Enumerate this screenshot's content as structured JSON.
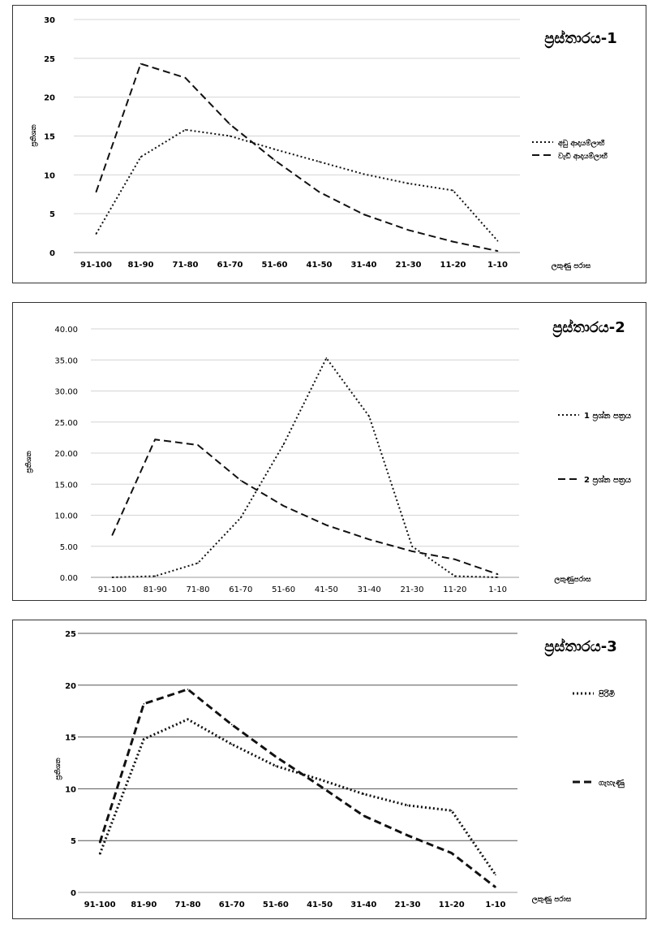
{
  "chart_data": [
    {
      "type": "line",
      "title": "ප්‍රස්තාරය-1",
      "ylabel": "ප්‍රතිශත",
      "xlabel": "ලකුණු පරාස",
      "categories": [
        "91-100",
        "81-90",
        "71-80",
        "61-70",
        "51-60",
        "41-50",
        "31-40",
        "21-30",
        "11-20",
        "1-10"
      ],
      "ylim": [
        0,
        30
      ],
      "yticks": [
        "0",
        "5",
        "10",
        "15",
        "20",
        "25",
        "30"
      ],
      "grid": true,
      "legend_position": "right",
      "series": [
        {
          "name": "අඩු ආදායම්ලාභී",
          "style": "dotted",
          "values": [
            2.4,
            12.3,
            15.8,
            15.0,
            13.3,
            11.7,
            10.1,
            8.9,
            8.0,
            1.5
          ]
        },
        {
          "name": "වැඩි ආදායම්ලාභී",
          "style": "dashed",
          "values": [
            7.8,
            24.3,
            22.5,
            16.5,
            11.9,
            7.8,
            4.9,
            2.9,
            1.4,
            0.2
          ]
        }
      ]
    },
    {
      "type": "line",
      "title": "ප්‍රස්තාරය-2",
      "ylabel": "ප්‍රතිශත",
      "xlabel": "ලකුණුපරාස",
      "categories": [
        "91-100",
        "81-90",
        "71-80",
        "61-70",
        "51-60",
        "41-50",
        "31-40",
        "21-30",
        "11-20",
        "1-10"
      ],
      "ylim": [
        0,
        40
      ],
      "yticks": [
        "0.00",
        "5.00",
        "10.00",
        "15.00",
        "20.00",
        "25.00",
        "30.00",
        "35.00",
        "40.00"
      ],
      "grid": true,
      "legend_position": "right",
      "series": [
        {
          "name": "1 ප්‍රශ්න පත්‍රය",
          "style": "dotted",
          "values": [
            0.0,
            0.2,
            2.3,
            9.6,
            21.4,
            35.3,
            25.9,
            5.0,
            0.2,
            0.0
          ]
        },
        {
          "name": "2 ප්‍රශ්න පත්‍රය",
          "style": "dashed",
          "values": [
            6.8,
            22.2,
            21.3,
            15.6,
            11.5,
            8.4,
            6.1,
            4.2,
            2.9,
            0.5
          ]
        }
      ]
    },
    {
      "type": "line",
      "title": "ප්‍රස්තාරය-3",
      "ylabel": "ප්‍රතිශත",
      "xlabel": "ලකුණු පරාස",
      "categories": [
        "91-100",
        "81-90",
        "71-80",
        "61-70",
        "51-60",
        "41-50",
        "31-40",
        "21-30",
        "11-20",
        "1-10"
      ],
      "ylim": [
        0,
        25
      ],
      "yticks": [
        "0",
        "5",
        "10",
        "15",
        "20",
        "25"
      ],
      "grid": true,
      "legend_position": "right",
      "series": [
        {
          "name": "පිරිමි",
          "style": "dotted",
          "values": [
            3.7,
            14.8,
            16.7,
            14.3,
            12.2,
            10.9,
            9.5,
            8.4,
            7.9,
            1.7
          ]
        },
        {
          "name": "ගැහැණු",
          "style": "dashed",
          "values": [
            4.8,
            18.2,
            19.6,
            16.2,
            13.1,
            10.3,
            7.4,
            5.5,
            3.8,
            0.5
          ]
        }
      ]
    }
  ]
}
